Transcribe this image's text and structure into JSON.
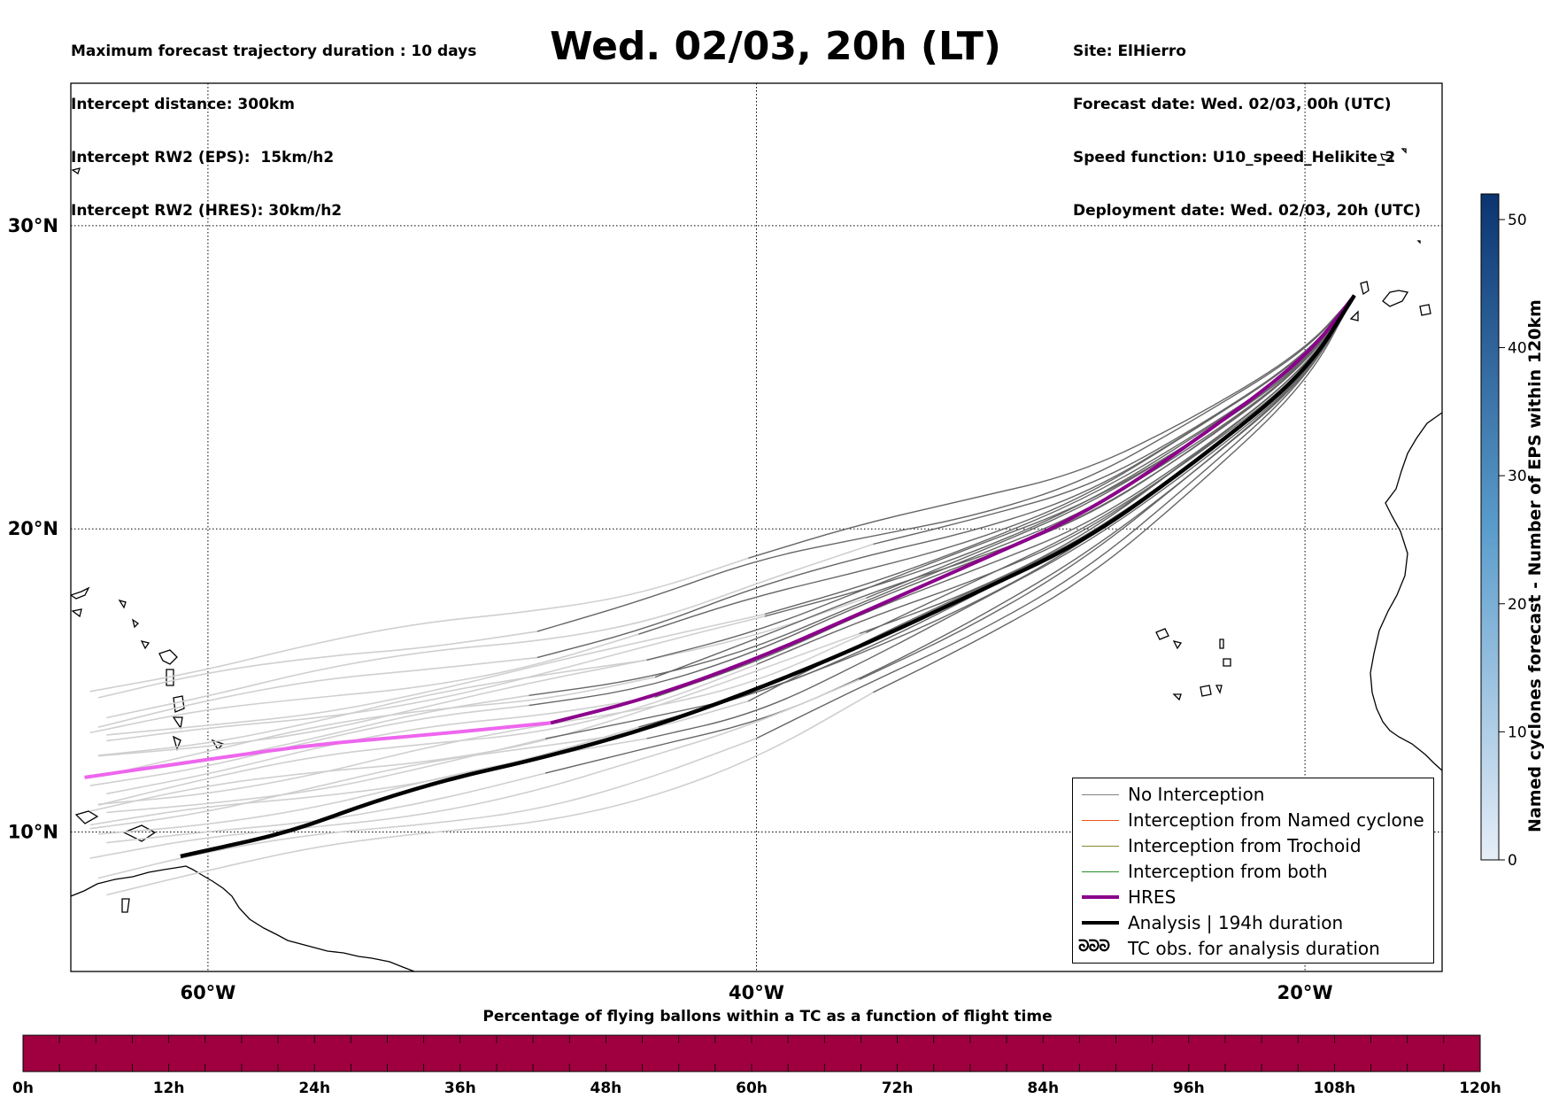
{
  "header": {
    "left_lines": [
      "Maximum forecast trajectory duration : 10 days",
      "Intercept distance: 300km",
      "Intercept RW2 (EPS):  15km/h2",
      "Intercept RW2 (HRES): 30km/h2"
    ],
    "title": "Wed. 02/03, 20h (LT)",
    "right_lines": [
      "Site: ElHierro",
      "Forecast date: Wed. 02/03, 00h (UTC)",
      "Speed function: U10_speed_Helikite_2",
      "Deployment date: Wed. 02/03, 20h (UTC)"
    ]
  },
  "map": {
    "lon_range": [
      -65,
      -15
    ],
    "lat_range": [
      5.4,
      34.7
    ],
    "lat_ticks": [
      {
        "value": 30,
        "label": "30°N"
      },
      {
        "value": 20,
        "label": "20°N"
      },
      {
        "value": 10,
        "label": "10°N"
      }
    ],
    "lon_ticks": [
      {
        "value": -60,
        "label": "60°W"
      },
      {
        "value": -40,
        "label": "40°W"
      },
      {
        "value": -20,
        "label": "20°W"
      }
    ],
    "grid": "dotted",
    "launch_site": {
      "lon": -18.2,
      "lat": 27.7
    },
    "colors": {
      "eps_dark": "#666666",
      "eps_light": "#cfcfcf",
      "hres": "#8b008b",
      "hres_light": "#ee66ee",
      "analysis": "#000000"
    }
  },
  "legend": {
    "placement": "lower-right",
    "items": [
      {
        "label": "No Interception",
        "color": "#808080",
        "style": "thin-line"
      },
      {
        "label": "Interception from Named cyclone",
        "color": "#e8541a",
        "style": "thin-line"
      },
      {
        "label": "Interception from Trochoid",
        "color": "#8a8a2a",
        "style": "thin-line"
      },
      {
        "label": "Interception from both",
        "color": "#2a8a2a",
        "style": "thin-line"
      },
      {
        "label": "HRES",
        "color": "#8b008b",
        "style": "thick-line"
      },
      {
        "label": "Analysis | 194h duration",
        "color": "#000000",
        "style": "thick-line"
      },
      {
        "label": "TC obs. for analysis duration",
        "color": "#000000",
        "style": "hurricane-symbol",
        "glyph": "ᘐᘐᘐ"
      }
    ]
  },
  "colorbar_right": {
    "label": "Named cyclones forecast - Number of EPS within 120km",
    "range": [
      0,
      52
    ],
    "ticks": [
      0,
      10,
      20,
      30,
      40,
      50
    ],
    "color_low": "#e6eef8",
    "color_high": "#0b3470"
  },
  "colorbar_bottom": {
    "title": "Percentage of flying ballons within a TC as a function of flight time",
    "ticks": [
      "0h",
      "12h",
      "24h",
      "36h",
      "48h",
      "60h",
      "72h",
      "84h",
      "96h",
      "108h",
      "120h"
    ],
    "segments": 40,
    "color": "#a00040"
  }
}
